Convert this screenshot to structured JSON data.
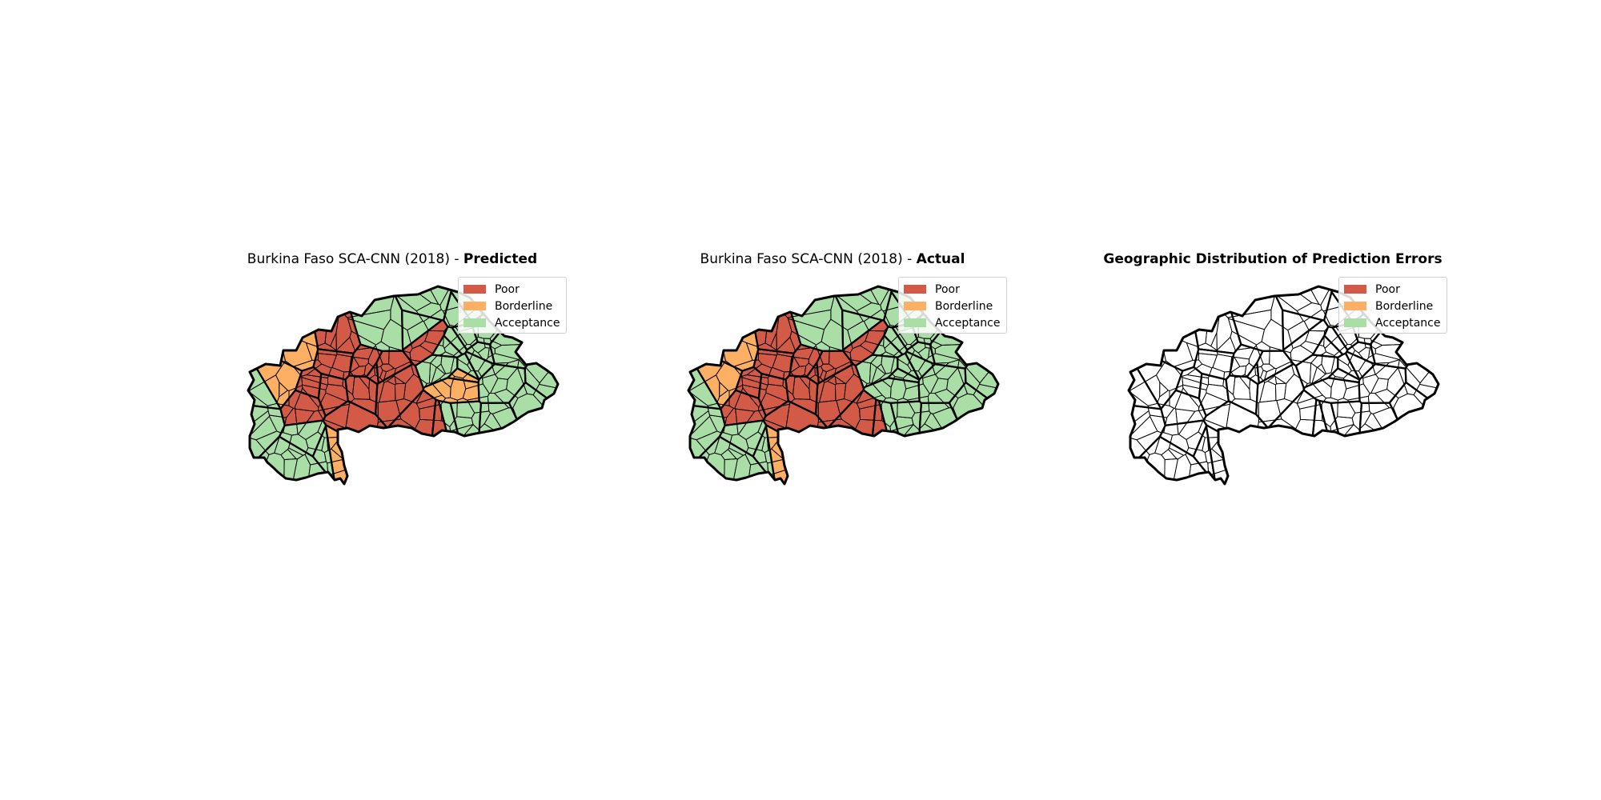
{
  "colors": {
    "poor": "#d35a47",
    "borderline": "#fdb063",
    "acceptance": "#aadea7",
    "none": "#ffffff"
  },
  "legend": [
    {
      "key": "poor",
      "label": "Poor"
    },
    {
      "key": "borderline",
      "label": "Borderline"
    },
    {
      "key": "acceptance",
      "label": "Acceptance"
    }
  ],
  "panels": [
    {
      "id": "predicted",
      "title_prefix": "Burkina Faso SCA-CNN (2018) - ",
      "title_bold": "Predicted"
    },
    {
      "id": "actual",
      "title_prefix": "Burkina Faso SCA-CNN (2018) - ",
      "title_bold": "Actual"
    },
    {
      "id": "errors",
      "title_prefix": "",
      "title_bold": "Geographic Distribution of Prediction Errors"
    }
  ]
}
